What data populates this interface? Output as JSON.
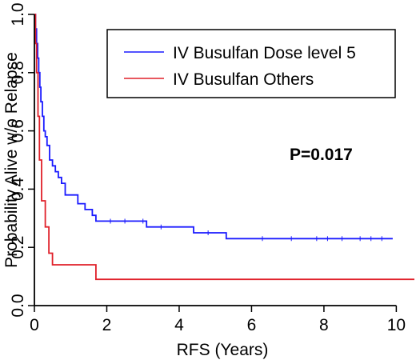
{
  "chart_data": {
    "type": "line",
    "step": true,
    "xlabel": "RFS (Years)",
    "ylabel": "Probability Alive w/o Relapse",
    "xlim": [
      0,
      10.5
    ],
    "ylim": [
      0,
      1
    ],
    "xticks": [
      0,
      2,
      4,
      6,
      8,
      10
    ],
    "yticks": [
      0.0,
      0.2,
      0.4,
      0.6,
      0.8,
      1.0
    ],
    "ytick_labels": [
      "0.0",
      "0.2",
      "0.4",
      "0.6",
      "0.8",
      "1.0"
    ],
    "annotation": "P=0.017",
    "legend_position": "top-right",
    "series": [
      {
        "name": "IV Busulfan Dose level 5",
        "color": "#1a1aff",
        "x": [
          0,
          0.03,
          0.06,
          0.09,
          0.12,
          0.15,
          0.18,
          0.22,
          0.26,
          0.3,
          0.35,
          0.42,
          0.5,
          0.58,
          0.66,
          0.75,
          0.85,
          1.0,
          1.2,
          1.4,
          1.6,
          1.7,
          3.1,
          4.4,
          5.3,
          9.9
        ],
        "y": [
          1.0,
          0.95,
          0.9,
          0.85,
          0.8,
          0.75,
          0.7,
          0.65,
          0.6,
          0.58,
          0.55,
          0.5,
          0.48,
          0.46,
          0.44,
          0.42,
          0.38,
          0.38,
          0.35,
          0.33,
          0.31,
          0.29,
          0.27,
          0.25,
          0.23,
          0.23
        ],
        "censor_x": [
          2.1,
          2.5,
          3.0,
          3.5,
          4.8,
          6.3,
          7.1,
          7.8,
          8.1,
          8.5,
          9.0,
          9.3,
          9.6
        ]
      },
      {
        "name": "IV Busulfan Others",
        "color": "#e0202a",
        "x": [
          0,
          0.03,
          0.06,
          0.1,
          0.14,
          0.2,
          0.3,
          0.4,
          0.5,
          0.6,
          1.7,
          10.5
        ],
        "y": [
          1.0,
          0.9,
          0.8,
          0.65,
          0.5,
          0.36,
          0.27,
          0.18,
          0.14,
          0.14,
          0.09,
          0.09
        ]
      }
    ]
  }
}
